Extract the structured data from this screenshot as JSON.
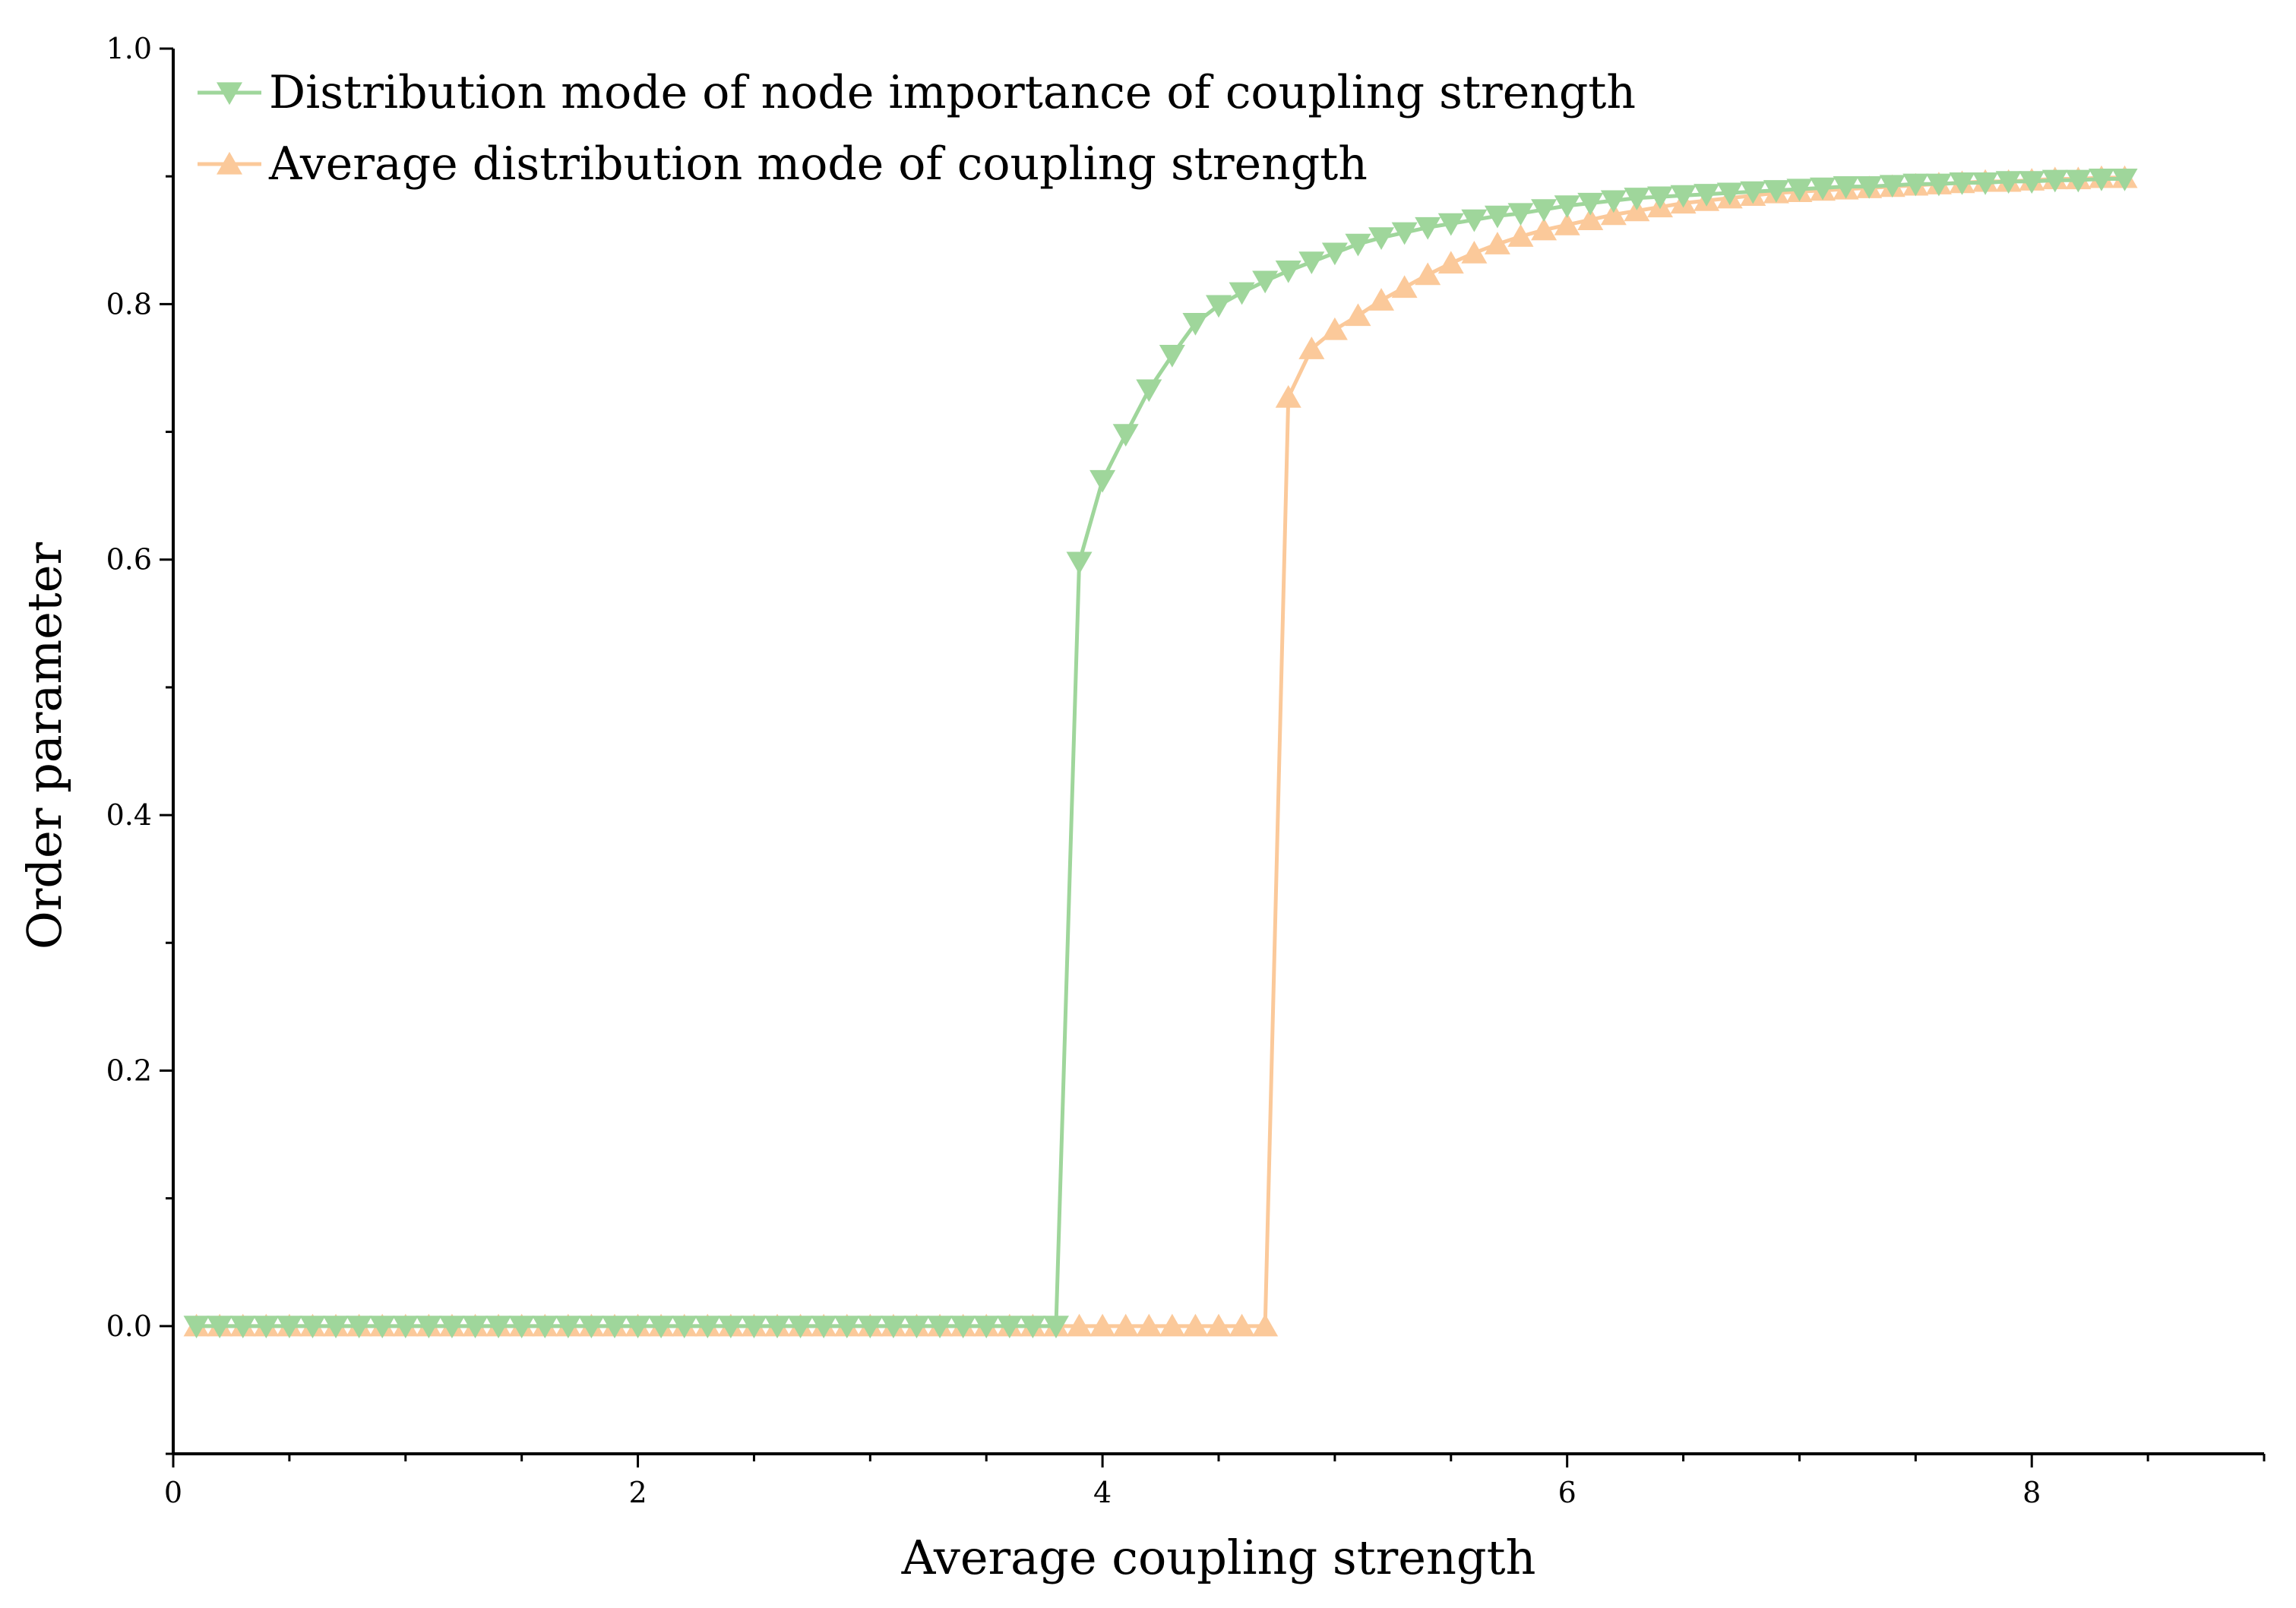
{
  "chart_data": {
    "type": "line",
    "title": "",
    "xlabel": "Average coupling strength",
    "ylabel": "Order parameter",
    "xlim": [
      0,
      9
    ],
    "ylim": [
      -0.1,
      1.0
    ],
    "x_ticks": [
      "0",
      "2",
      "4",
      "6",
      "8"
    ],
    "y_ticks": [
      "0.0",
      "0.2",
      "0.4",
      "0.6",
      "0.8",
      "1.0"
    ],
    "legend_position": "top-left",
    "series": [
      {
        "name": "Distribution mode of node importance of coupling strength",
        "color": "#9fd69b",
        "marker": "triangle-down",
        "x": [
          0.1,
          0.2,
          0.3,
          0.4,
          0.5,
          0.6,
          0.7,
          0.8,
          0.9,
          1.0,
          1.1,
          1.2,
          1.3,
          1.4,
          1.5,
          1.6,
          1.7,
          1.8,
          1.9,
          2.0,
          2.1,
          2.2,
          2.3,
          2.4,
          2.5,
          2.6,
          2.7,
          2.8,
          2.9,
          3.0,
          3.1,
          3.2,
          3.3,
          3.4,
          3.5,
          3.6,
          3.7,
          3.8,
          3.9,
          4.0,
          4.1,
          4.2,
          4.3,
          4.4,
          4.5,
          4.6,
          4.7,
          4.8,
          4.9,
          5.0,
          5.1,
          5.2,
          5.3,
          5.4,
          5.5,
          5.6,
          5.7,
          5.8,
          5.9,
          6.0,
          6.1,
          6.2,
          6.3,
          6.4,
          6.5,
          6.6,
          6.7,
          6.8,
          6.9,
          7.0,
          7.1,
          7.2,
          7.3,
          7.4,
          7.5,
          7.6,
          7.7,
          7.8,
          7.9,
          8.0,
          8.1,
          8.2,
          8.3,
          8.4
        ],
        "y": [
          0,
          0,
          0,
          0,
          0,
          0,
          0,
          0,
          0,
          0,
          0,
          0,
          0,
          0,
          0,
          0,
          0,
          0,
          0,
          0,
          0,
          0,
          0,
          0,
          0,
          0,
          0,
          0,
          0,
          0,
          0,
          0,
          0,
          0,
          0,
          0,
          0,
          0,
          0.598,
          0.662,
          0.698,
          0.733,
          0.76,
          0.785,
          0.799,
          0.809,
          0.818,
          0.826,
          0.833,
          0.84,
          0.847,
          0.852,
          0.856,
          0.86,
          0.863,
          0.866,
          0.869,
          0.871,
          0.874,
          0.877,
          0.879,
          0.881,
          0.883,
          0.884,
          0.885,
          0.886,
          0.887,
          0.888,
          0.889,
          0.89,
          0.891,
          0.892,
          0.892,
          0.893,
          0.894,
          0.894,
          0.895,
          0.895,
          0.896,
          0.896,
          0.897,
          0.897,
          0.898,
          0.898
        ]
      },
      {
        "name": "Average distribution mode of coupling strength",
        "color": "#fbc99a",
        "marker": "triangle-up",
        "x": [
          0.1,
          0.2,
          0.3,
          0.4,
          0.5,
          0.6,
          0.7,
          0.8,
          0.9,
          1.0,
          1.1,
          1.2,
          1.3,
          1.4,
          1.5,
          1.6,
          1.7,
          1.8,
          1.9,
          2.0,
          2.1,
          2.2,
          2.3,
          2.4,
          2.5,
          2.6,
          2.7,
          2.8,
          2.9,
          3.0,
          3.1,
          3.2,
          3.3,
          3.4,
          3.5,
          3.6,
          3.7,
          3.8,
          3.9,
          4.0,
          4.1,
          4.2,
          4.3,
          4.4,
          4.5,
          4.6,
          4.7,
          4.8,
          4.9,
          5.0,
          5.1,
          5.2,
          5.3,
          5.4,
          5.5,
          5.6,
          5.7,
          5.8,
          5.9,
          6.0,
          6.1,
          6.2,
          6.3,
          6.4,
          6.5,
          6.6,
          6.7,
          6.8,
          6.9,
          7.0,
          7.1,
          7.2,
          7.3,
          7.4,
          7.5,
          7.6,
          7.7,
          7.8,
          7.9,
          8.0,
          8.1,
          8.2,
          8.3,
          8.4
        ],
        "y": [
          0,
          0,
          0,
          0,
          0,
          0,
          0,
          0,
          0,
          0,
          0,
          0,
          0,
          0,
          0,
          0,
          0,
          0,
          0,
          0,
          0,
          0,
          0,
          0,
          0,
          0,
          0,
          0,
          0,
          0,
          0,
          0,
          0,
          0,
          0,
          0,
          0,
          0,
          0,
          0,
          0,
          0,
          0,
          0,
          0,
          0,
          0,
          0.727,
          0.765,
          0.78,
          0.791,
          0.803,
          0.813,
          0.823,
          0.832,
          0.84,
          0.847,
          0.853,
          0.858,
          0.862,
          0.866,
          0.87,
          0.873,
          0.876,
          0.879,
          0.881,
          0.883,
          0.885,
          0.887,
          0.888,
          0.889,
          0.89,
          0.891,
          0.892,
          0.893,
          0.894,
          0.895,
          0.896,
          0.896,
          0.897,
          0.898,
          0.898,
          0.899,
          0.899
        ]
      }
    ]
  }
}
